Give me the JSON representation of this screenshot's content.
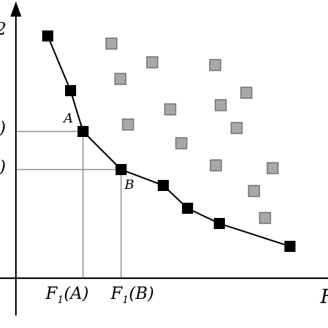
{
  "labels": {
    "y_axis_fragment": "2",
    "x_axis_fragment": "F",
    "point_a": "A",
    "point_b": "B",
    "y_tick_a_fragment": ")",
    "y_tick_b_fragment": ")",
    "x_tick_a": {
      "prefix": "F",
      "sub": "1",
      "suffix": "(A)"
    },
    "x_tick_b": {
      "prefix": "F",
      "sub": "1",
      "suffix": "(B)"
    }
  },
  "colors": {
    "front": "#000000",
    "dominated_fill": "#a8a8a8",
    "dominated_stroke": "#444444",
    "guides": "#555555"
  },
  "chart_data": {
    "type": "scatter",
    "xlim": [
      0,
      450
    ],
    "ylim": [
      0,
      400
    ],
    "series": [
      {
        "points": [
          [
            46,
            350
          ],
          [
            79,
            271
          ],
          [
            97,
            212
          ],
          [
            152,
            157
          ],
          [
            213,
            134
          ],
          [
            248,
            101
          ],
          [
            294,
            79
          ],
          [
            396,
            46
          ]
        ]
      },
      {
        "points": [
          [
            138,
            339
          ],
          [
            197,
            312
          ],
          [
            288,
            308
          ],
          [
            151,
            288
          ],
          [
            333,
            268
          ],
          [
            223,
            244
          ],
          [
            296,
            250
          ],
          [
            162,
            222
          ],
          [
            319,
            217
          ],
          [
            239,
            195
          ],
          [
            289,
            163
          ],
          [
            371,
            159
          ],
          [
            344,
            126
          ],
          [
            360,
            87
          ]
        ]
      }
    ],
    "point_a": [
      97,
      212
    ],
    "point_b": [
      152,
      157
    ]
  }
}
